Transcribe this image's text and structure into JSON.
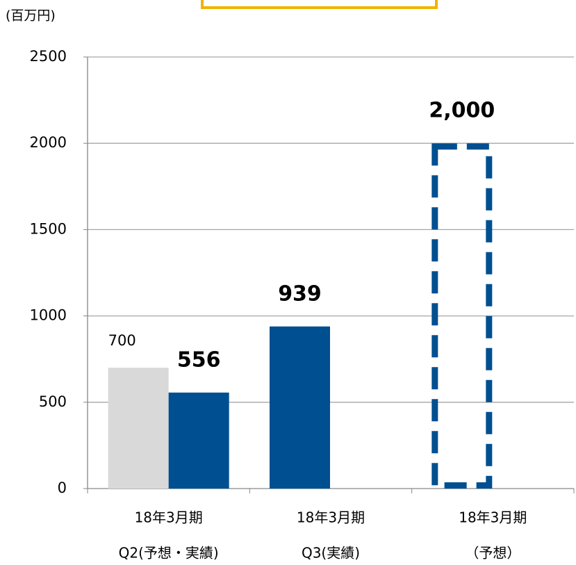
{
  "chart_data": {
    "type": "bar",
    "unit_label": "(百万円)",
    "categories": [
      [
        "18年3月期",
        "Q2(予想・実績)"
      ],
      [
        "18年3月期",
        "Q3(実績)"
      ],
      [
        "18年3月期",
        "（予想）"
      ]
    ],
    "series": [
      {
        "color": "#d9d9d9",
        "values": [
          700,
          null,
          null
        ],
        "value_labels": [
          "700",
          null,
          null
        ],
        "label_bold": false,
        "style": "solid"
      },
      {
        "color": "#004f91",
        "values": [
          556,
          939,
          null
        ],
        "value_labels": [
          "556",
          "939",
          null
        ],
        "label_bold": true,
        "style": "solid"
      },
      {
        "color": "#004f91",
        "values": [
          null,
          null,
          2000
        ],
        "value_labels": [
          null,
          null,
          "2,000"
        ],
        "label_bold": true,
        "style": "dashed"
      }
    ],
    "ylim": [
      0,
      2500
    ],
    "yticks": [
      0,
      500,
      1000,
      1500,
      2000,
      2500
    ],
    "grid": true
  }
}
